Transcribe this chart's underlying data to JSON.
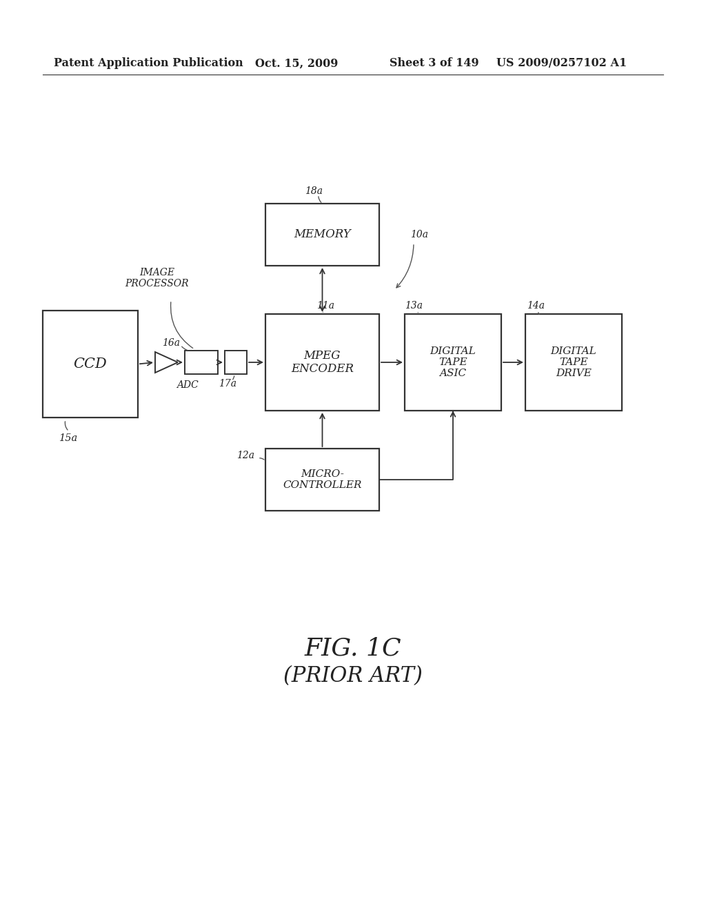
{
  "bg_color": "#ffffff",
  "header_text": "Patent Application Publication",
  "header_date": "Oct. 15, 2009",
  "header_sheet": "Sheet 3 of 149",
  "header_patent": "US 2009/0257102 A1",
  "fig_label": "FIG. 1C",
  "fig_sublabel": "(PRIOR ART)",
  "line_color": "#333333",
  "text_color": "#222222"
}
